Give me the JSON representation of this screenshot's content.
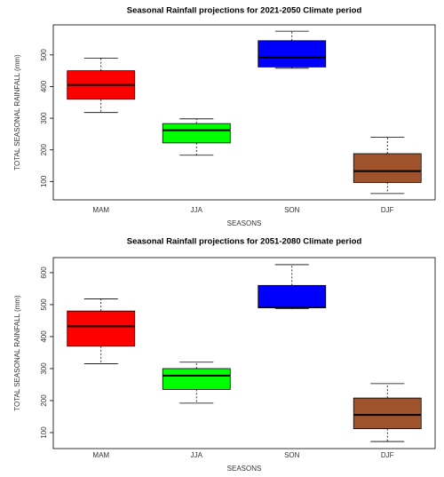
{
  "chart_data": [
    {
      "type": "box",
      "title": "Seasonal Rainfall projections for 2021-2050 Climate period",
      "x_label": "SEASONS",
      "y_label": "TOTAL SEASONAL RAINFALL (mm)",
      "categories": [
        "MAM",
        "JJA",
        "SON",
        "DJF"
      ],
      "boxes": [
        {
          "min": 318,
          "q1": 360,
          "median": 405,
          "q3": 450,
          "max": 490,
          "color": "#ff0000"
        },
        {
          "min": 183,
          "q1": 222,
          "median": 262,
          "q3": 283,
          "max": 298,
          "color": "#00ff00"
        },
        {
          "min": 458,
          "q1": 462,
          "median": 492,
          "q3": 545,
          "max": 575,
          "color": "#0000ff"
        },
        {
          "min": 62,
          "q1": 97,
          "median": 133,
          "q3": 188,
          "max": 240,
          "color": "#a0522d"
        }
      ],
      "ylim": [
        42,
        595
      ],
      "yticks": [
        100,
        200,
        300,
        400,
        500
      ]
    },
    {
      "type": "box",
      "title": "Seasonal Rainfall projections for 2051-2080 Climate period",
      "x_label": "SEASONS",
      "y_label": "TOTAL SEASONAL RAINFALL (mm)",
      "categories": [
        "MAM",
        "JJA",
        "SON",
        "DJF"
      ],
      "boxes": [
        {
          "min": 315,
          "q1": 370,
          "median": 432,
          "q3": 480,
          "max": 518,
          "color": "#ff0000"
        },
        {
          "min": 192,
          "q1": 235,
          "median": 278,
          "q3": 300,
          "max": 320,
          "color": "#00ff00"
        },
        {
          "min": 487,
          "q1": 490,
          "median": 492,
          "q3": 560,
          "max": 625,
          "color": "#0000ff"
        },
        {
          "min": 72,
          "q1": 112,
          "median": 155,
          "q3": 208,
          "max": 253,
          "color": "#a0522d"
        }
      ],
      "ylim": [
        50,
        647
      ],
      "yticks": [
        100,
        200,
        300,
        400,
        500,
        600
      ]
    }
  ]
}
